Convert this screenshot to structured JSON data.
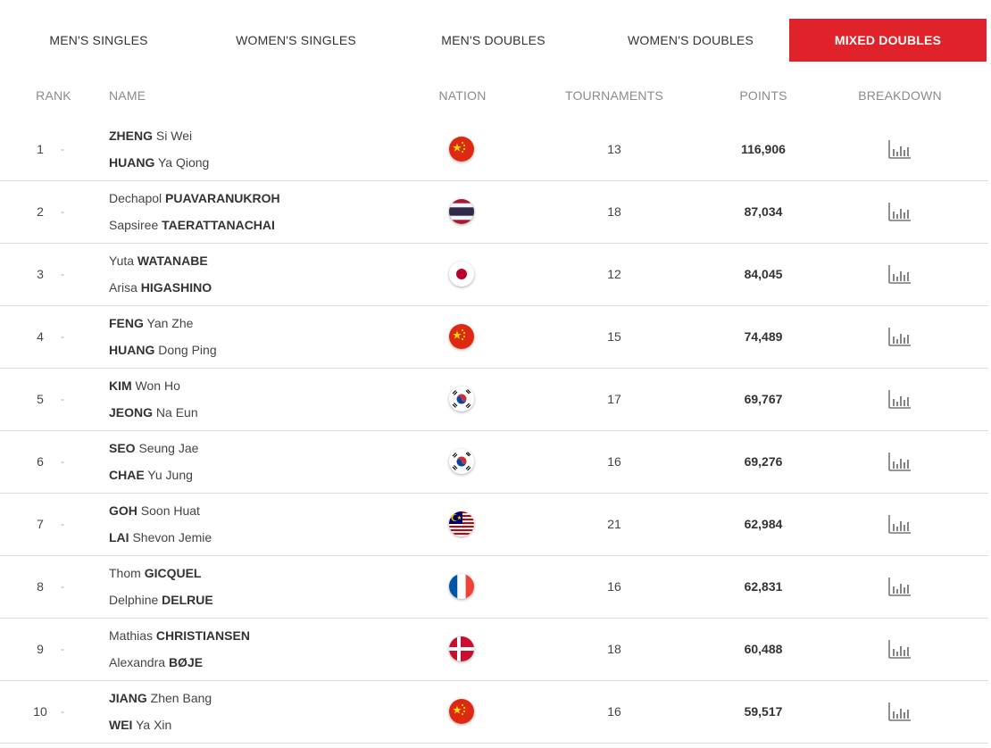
{
  "tabs": [
    {
      "label": "MEN'S SINGLES"
    },
    {
      "label": "WOMEN'S SINGLES"
    },
    {
      "label": "MEN'S DOUBLES"
    },
    {
      "label": "WOMEN'S DOUBLES"
    },
    {
      "label": "MIXED DOUBLES"
    }
  ],
  "active_tab": "MIXED DOUBLES",
  "colors": {
    "accent": "#e0232b"
  },
  "columns": {
    "rank": "RANK",
    "name": "NAME",
    "nation": "NATION",
    "tournaments": "TOURNAMENTS",
    "points": "POINTS",
    "breakdown": "BREAKDOWN"
  },
  "rows": [
    {
      "rank": "1",
      "change": "-",
      "nation": "china",
      "p1": {
        "first": "",
        "bold": "ZHENG",
        "after": " Si Wei"
      },
      "p2": {
        "first": "",
        "bold": "HUANG",
        "after": " Ya Qiong"
      },
      "tournaments": "13",
      "points": "116,906"
    },
    {
      "rank": "2",
      "change": "-",
      "nation": "thailand",
      "p1": {
        "first": "Dechapol ",
        "bold": "PUAVARANUKROH",
        "after": ""
      },
      "p2": {
        "first": "Sapsiree ",
        "bold": "TAERATTANACHAI",
        "after": ""
      },
      "tournaments": "18",
      "points": "87,034"
    },
    {
      "rank": "3",
      "change": "-",
      "nation": "japan",
      "p1": {
        "first": "Yuta ",
        "bold": "WATANABE",
        "after": ""
      },
      "p2": {
        "first": "Arisa ",
        "bold": "HIGASHINO",
        "after": ""
      },
      "tournaments": "12",
      "points": "84,045"
    },
    {
      "rank": "4",
      "change": "-",
      "nation": "china",
      "p1": {
        "first": "",
        "bold": "FENG",
        "after": " Yan Zhe"
      },
      "p2": {
        "first": "",
        "bold": "HUANG",
        "after": " Dong Ping"
      },
      "tournaments": "15",
      "points": "74,489"
    },
    {
      "rank": "5",
      "change": "-",
      "nation": "korea",
      "p1": {
        "first": "",
        "bold": "KIM",
        "after": " Won Ho"
      },
      "p2": {
        "first": "",
        "bold": "JEONG",
        "after": " Na Eun"
      },
      "tournaments": "17",
      "points": "69,767"
    },
    {
      "rank": "6",
      "change": "-",
      "nation": "korea",
      "p1": {
        "first": "",
        "bold": "SEO",
        "after": " Seung Jae"
      },
      "p2": {
        "first": "",
        "bold": "CHAE",
        "after": " Yu Jung"
      },
      "tournaments": "16",
      "points": "69,276"
    },
    {
      "rank": "7",
      "change": "-",
      "nation": "malaysia",
      "p1": {
        "first": "",
        "bold": "GOH",
        "after": " Soon Huat"
      },
      "p2": {
        "first": "",
        "bold": "LAI",
        "after": " Shevon Jemie"
      },
      "tournaments": "21",
      "points": "62,984"
    },
    {
      "rank": "8",
      "change": "-",
      "nation": "france",
      "p1": {
        "first": "Thom ",
        "bold": "GICQUEL",
        "after": ""
      },
      "p2": {
        "first": "Delphine ",
        "bold": "DELRUE",
        "after": ""
      },
      "tournaments": "16",
      "points": "62,831"
    },
    {
      "rank": "9",
      "change": "-",
      "nation": "denmark",
      "p1": {
        "first": "Mathias ",
        "bold": "CHRISTIANSEN",
        "after": ""
      },
      "p2": {
        "first": "Alexandra ",
        "bold": "BØJE",
        "after": ""
      },
      "tournaments": "18",
      "points": "60,488"
    },
    {
      "rank": "10",
      "change": "-",
      "nation": "china",
      "p1": {
        "first": "",
        "bold": "JIANG",
        "after": " Zhen Bang"
      },
      "p2": {
        "first": "",
        "bold": "WEI",
        "after": " Ya Xin"
      },
      "tournaments": "16",
      "points": "59,517"
    }
  ]
}
